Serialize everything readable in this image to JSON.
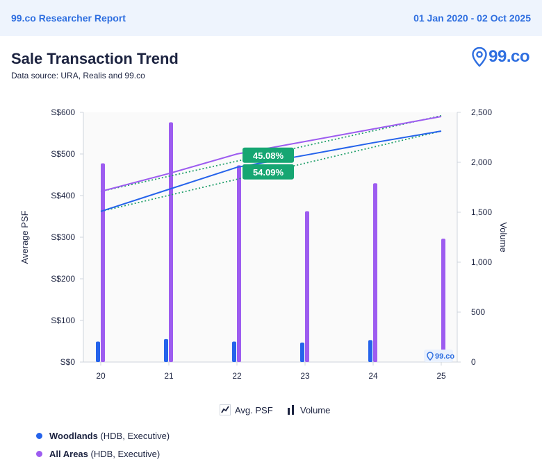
{
  "header": {
    "report_title": "99.co Researcher Report",
    "date_range": "01 Jan 2020 - 02 Oct 2025"
  },
  "chart_header": {
    "title": "Sale Transaction Trend",
    "source": "Data source: URA, Realis and 99.co",
    "logo_text": "99.co",
    "watermark_text": "99.co"
  },
  "colors": {
    "woodlands": "#2563eb",
    "all_areas": "#9d5cf0",
    "trend": "#22a06b",
    "badge": "#16a672"
  },
  "chart_data": {
    "type": "bar+line",
    "categories": [
      "20",
      "21",
      "22",
      "23",
      "24",
      "25"
    ],
    "left_axis": {
      "label": "Average PSF",
      "ylim": [
        0,
        600
      ],
      "ticks": [
        0,
        100,
        200,
        300,
        400,
        500,
        600
      ],
      "tick_labels": [
        "S$0",
        "S$100",
        "S$200",
        "S$300",
        "S$400",
        "S$500",
        "S$600"
      ]
    },
    "right_axis": {
      "label": "Volume",
      "ylim": [
        0,
        2500
      ],
      "ticks": [
        0,
        500,
        1000,
        1500,
        2000,
        2500
      ],
      "tick_labels": [
        "0",
        "500",
        "1,000",
        "1,500",
        "2,000",
        "2,500"
      ]
    },
    "volume_series": [
      {
        "name": "Woodlands",
        "key": "woodlands",
        "values": [
          205,
          230,
          205,
          195,
          220,
          0
        ]
      },
      {
        "name": "All Areas",
        "key": "all_areas",
        "values": [
          1990,
          2400,
          1970,
          1510,
          1790,
          1235
        ]
      }
    ],
    "psf_series": [
      {
        "name": "Woodlands",
        "key": "woodlands",
        "values": [
          362,
          415,
          468,
          497,
          527,
          555
        ]
      },
      {
        "name": "All Areas",
        "key": "all_areas",
        "values": [
          410,
          453,
          500,
          530,
          560,
          590
        ]
      }
    ],
    "trend_lines": [
      {
        "key": "woodlands",
        "from": 362,
        "to": 555
      },
      {
        "key": "all_areas",
        "from": 410,
        "to": 592
      }
    ],
    "annotations": [
      {
        "text": "45.08%",
        "x_index": 2,
        "y": 497
      },
      {
        "text": "54.09%",
        "x_index": 2,
        "y": 457
      }
    ],
    "legend": {
      "avg_psf": "Avg. PSF",
      "volume": "Volume"
    }
  },
  "series_legend": [
    {
      "name": "Woodlands",
      "detail": "(HDB, Executive)",
      "key": "woodlands"
    },
    {
      "name": "All Areas",
      "detail": "(HDB, Executive)",
      "key": "all_areas"
    }
  ]
}
